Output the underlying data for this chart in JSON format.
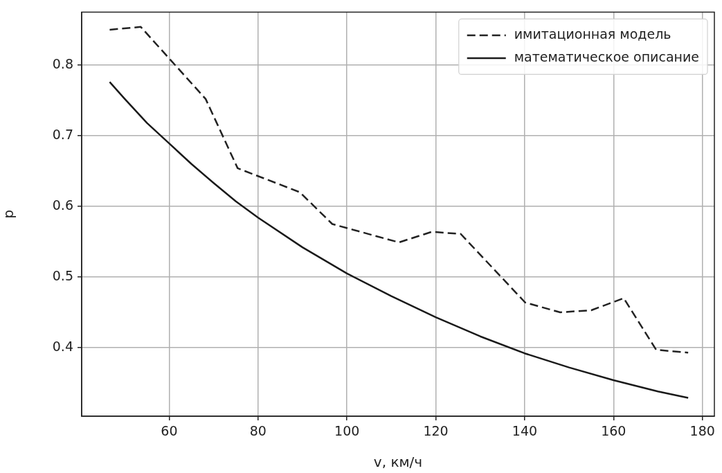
{
  "chart_data": {
    "type": "line",
    "xlabel": "v, км/ч",
    "ylabel": "p",
    "xlim": [
      40.3,
      182.7
    ],
    "xticks": [
      60,
      80,
      100,
      120,
      140,
      160,
      180
    ],
    "ylim": [
      0.303,
      0.875
    ],
    "yticks": [
      0.4,
      0.5,
      0.6,
      0.7,
      0.8
    ],
    "grid": true,
    "legend": "top right",
    "marker": "none",
    "series": [
      {
        "name": "имитационная модель",
        "color": "#222222",
        "line_style": "dashed",
        "x": [
          46.6,
          53.6,
          68.2,
          75.4,
          89.4,
          96.7,
          111.7,
          119.1,
          125.6,
          140.1,
          148.0,
          155.0,
          162.3,
          169.6,
          176.8
        ],
        "values": [
          0.85,
          0.854,
          0.752,
          0.654,
          0.62,
          0.575,
          0.549,
          0.564,
          0.561,
          0.464,
          0.45,
          0.453,
          0.47,
          0.397,
          0.393
        ]
      },
      {
        "name": "математическое описание",
        "color": "#1a1a1a",
        "line_style": "solid",
        "x": [
          46.6,
          50,
          55,
          60,
          65,
          70,
          75,
          80,
          90,
          100,
          110,
          120,
          130,
          140,
          150,
          160,
          170,
          176.8
        ],
        "values": [
          0.776,
          0.752,
          0.718,
          0.689,
          0.66,
          0.633,
          0.607,
          0.584,
          0.542,
          0.505,
          0.473,
          0.443,
          0.416,
          0.392,
          0.372,
          0.354,
          0.338,
          0.329
        ]
      }
    ]
  }
}
